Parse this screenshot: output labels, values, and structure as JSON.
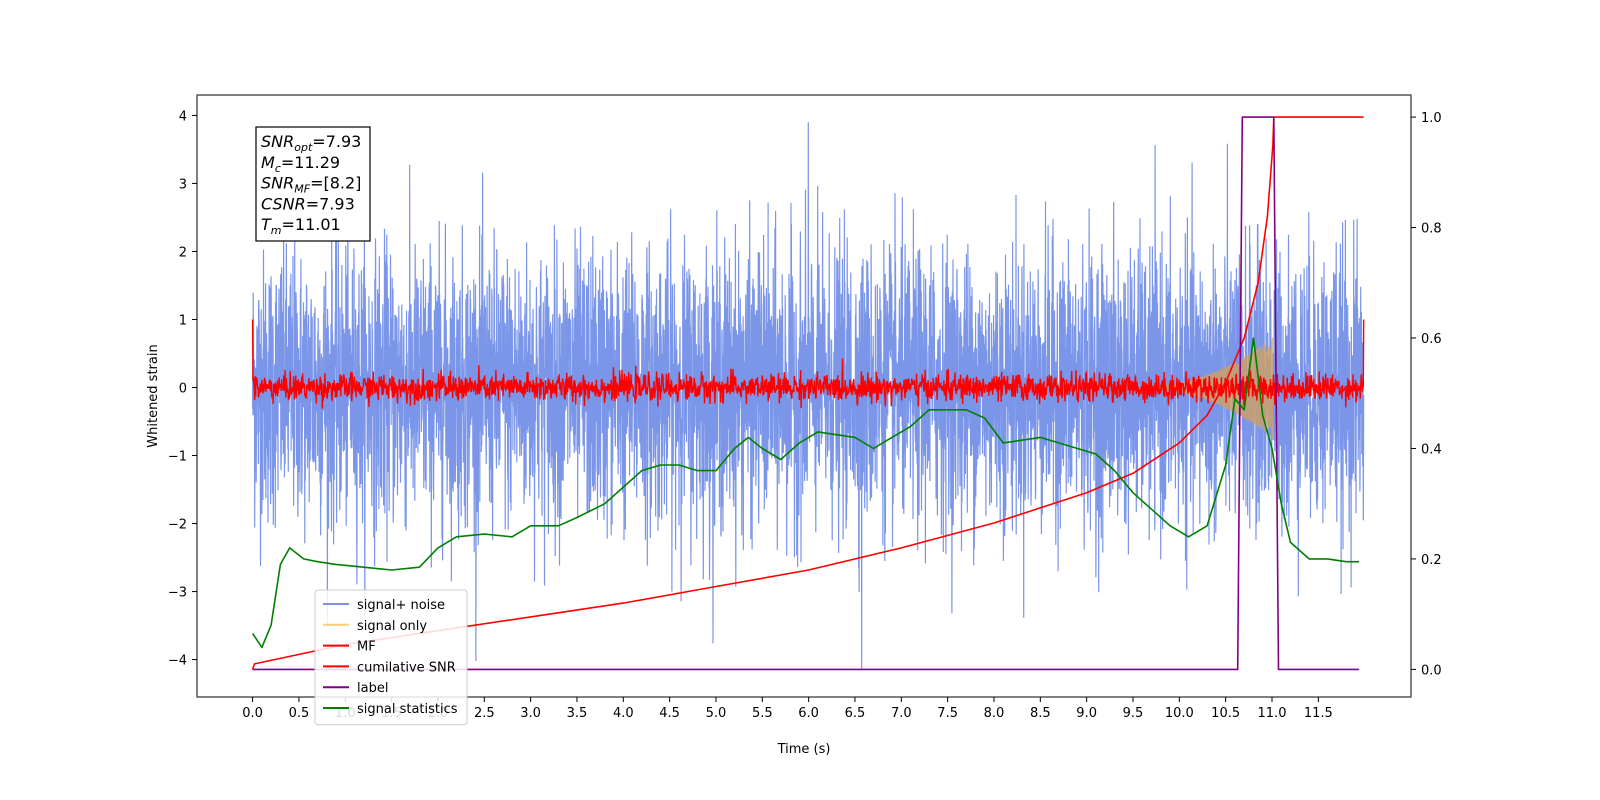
{
  "chart_data": {
    "type": "line",
    "xlabel": "Time (s)",
    "ylabel": "Whitened strain",
    "xlim": [
      -0.6,
      12.5
    ],
    "ylim": [
      -4.55,
      4.3
    ],
    "y2lim": [
      -0.05,
      1.04
    ],
    "x_ticks": [
      0.0,
      0.5,
      1.0,
      1.5,
      2.0,
      2.5,
      3.0,
      3.5,
      4.0,
      4.5,
      5.0,
      5.5,
      6.0,
      6.5,
      7.0,
      7.5,
      8.0,
      8.5,
      9.0,
      9.5,
      10.0,
      10.5,
      11.0,
      11.5
    ],
    "x_tick_labels": [
      "0.0",
      "0.5",
      "1.0",
      "1.5",
      "2.0",
      "2.5",
      "3.0",
      "3.5",
      "4.0",
      "4.5",
      "5.0",
      "5.5",
      "6.0",
      "6.5",
      "7.0",
      "7.5",
      "8.0",
      "8.5",
      "9.0",
      "9.5",
      "10.0",
      "10.5",
      "11.0",
      "11.5"
    ],
    "y_ticks": [
      -4,
      -3,
      -2,
      -1,
      0,
      1,
      2,
      3,
      4
    ],
    "y_tick_labels": [
      "−4",
      "−3",
      "−2",
      "−1",
      "0",
      "1",
      "2",
      "3",
      "4"
    ],
    "y2_ticks": [
      0.0,
      0.2,
      0.4,
      0.6,
      0.8,
      1.0
    ],
    "y2_tick_labels": [
      "0.0",
      "0.2",
      "0.4",
      "0.6",
      "0.8",
      "1.0"
    ],
    "legend": {
      "placement": "lower-left",
      "entries": [
        {
          "label": "signal+ noise",
          "color": "#7b96e8"
        },
        {
          "label": "signal only",
          "color": "#f5cf7a"
        },
        {
          "label": "MF",
          "color": "#ff0000"
        },
        {
          "label": "cumilative SNR",
          "color": "#ff0000"
        },
        {
          "label": "label",
          "color": "#800080"
        },
        {
          "label": "signal statistics",
          "color": "#008000"
        }
      ]
    },
    "annotation": {
      "lines": [
        {
          "sym": "SNR",
          "sub": "opt",
          "value": "=7.93"
        },
        {
          "sym": "M",
          "sub": "c",
          "value": "=11.29"
        },
        {
          "sym": "SNR",
          "sub": "MF",
          "value": "=[8.2]"
        },
        {
          "sym": "CSNR",
          "sub": "",
          "value": "=7.93"
        },
        {
          "sym": "T",
          "sub": "m",
          "value": "=11.01"
        }
      ]
    },
    "series": [
      {
        "name": "signal+ noise",
        "axis": "left",
        "color": "#7b96e8",
        "x_range": [
          0.0,
          11.99
        ],
        "noise_sigma": 1.0,
        "y_extremes": {
          "max": 3.9,
          "min": -4.15
        }
      },
      {
        "name": "signal only",
        "axis": "left",
        "color": "#f5cf7a",
        "chirp_start": 9.5,
        "chirp_end": 11.01,
        "peak_amplitude": 0.75
      },
      {
        "name": "MF",
        "axis": "left",
        "color": "#ff0000",
        "x_range": [
          0.0,
          11.99
        ],
        "noise_sigma": 0.1,
        "edge_values": {
          "start": 1.0,
          "end": 1.0
        }
      },
      {
        "name": "cumilative SNR",
        "axis": "right",
        "color": "#ff0000",
        "x": [
          0.0,
          0.02,
          1.0,
          2.0,
          3.0,
          4.0,
          5.0,
          6.0,
          7.0,
          8.0,
          9.0,
          9.5,
          10.0,
          10.3,
          10.5,
          10.7,
          10.85,
          10.95,
          11.01,
          11.02,
          11.99
        ],
        "y": [
          0.0,
          0.01,
          0.045,
          0.07,
          0.095,
          0.12,
          0.15,
          0.18,
          0.22,
          0.265,
          0.32,
          0.355,
          0.41,
          0.46,
          0.52,
          0.6,
          0.7,
          0.82,
          0.95,
          1.0,
          1.0
        ]
      },
      {
        "name": "label",
        "axis": "right",
        "color": "#800080",
        "x": [
          0.0,
          10.63,
          10.68,
          11.02,
          11.07,
          11.94
        ],
        "y": [
          0.0,
          0.0,
          1.0,
          1.0,
          0.0,
          0.0
        ]
      },
      {
        "name": "signal statistics",
        "axis": "right",
        "color": "#008000",
        "x": [
          0.0,
          0.1,
          0.2,
          0.3,
          0.4,
          0.55,
          0.7,
          0.9,
          1.2,
          1.5,
          1.8,
          2.0,
          2.2,
          2.5,
          2.8,
          3.0,
          3.3,
          3.5,
          3.8,
          4.0,
          4.2,
          4.4,
          4.6,
          4.8,
          5.0,
          5.2,
          5.35,
          5.5,
          5.7,
          5.9,
          6.1,
          6.3,
          6.5,
          6.7,
          6.9,
          7.1,
          7.3,
          7.5,
          7.7,
          7.9,
          8.1,
          8.3,
          8.5,
          8.7,
          8.9,
          9.1,
          9.3,
          9.5,
          9.7,
          9.9,
          10.1,
          10.3,
          10.5,
          10.6,
          10.7,
          10.8,
          10.9,
          11.0,
          11.1,
          11.2,
          11.4,
          11.6,
          11.8,
          11.94
        ],
        "y": [
          0.065,
          0.04,
          0.08,
          0.19,
          0.22,
          0.2,
          0.195,
          0.19,
          0.185,
          0.18,
          0.185,
          0.22,
          0.24,
          0.245,
          0.24,
          0.26,
          0.26,
          0.275,
          0.3,
          0.33,
          0.36,
          0.37,
          0.37,
          0.36,
          0.36,
          0.4,
          0.42,
          0.4,
          0.38,
          0.41,
          0.43,
          0.425,
          0.42,
          0.4,
          0.42,
          0.44,
          0.47,
          0.47,
          0.47,
          0.455,
          0.41,
          0.415,
          0.42,
          0.41,
          0.4,
          0.39,
          0.36,
          0.32,
          0.29,
          0.26,
          0.24,
          0.26,
          0.37,
          0.49,
          0.47,
          0.6,
          0.46,
          0.4,
          0.3,
          0.23,
          0.2,
          0.2,
          0.195,
          0.195
        ]
      }
    ]
  }
}
